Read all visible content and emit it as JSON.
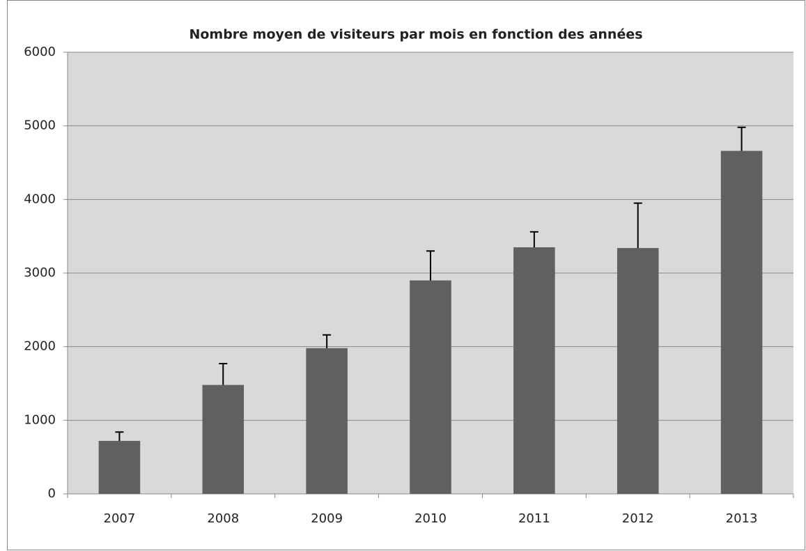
{
  "chart_data": {
    "type": "bar",
    "title": "Nombre moyen de visiteurs par mois en fonction des années",
    "categories": [
      "2007",
      "2008",
      "2009",
      "2010",
      "2011",
      "2012",
      "2013"
    ],
    "values": [
      720,
      1480,
      1980,
      2900,
      3350,
      3340,
      4660
    ],
    "errors": [
      120,
      290,
      180,
      400,
      210,
      610,
      320
    ],
    "color": "#606060",
    "ylim": [
      0,
      6000
    ],
    "yticks": [
      0,
      1000,
      2000,
      3000,
      4000,
      5000,
      6000
    ],
    "grid": true
  }
}
